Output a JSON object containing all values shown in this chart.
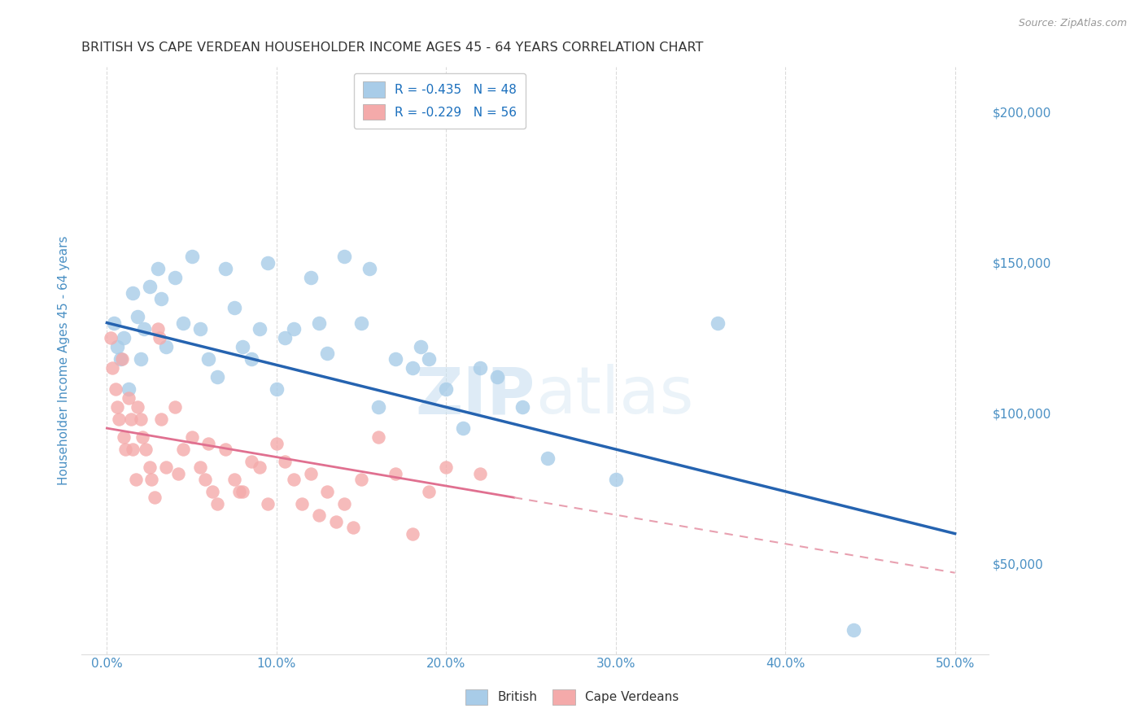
{
  "title": "BRITISH VS CAPE VERDEAN HOUSEHOLDER INCOME AGES 45 - 64 YEARS CORRELATION CHART",
  "source": "Source: ZipAtlas.com",
  "ylabel": "Householder Income Ages 45 - 64 years",
  "xlabel_ticks": [
    "0.0%",
    "10.0%",
    "20.0%",
    "30.0%",
    "40.0%",
    "50.0%"
  ],
  "xlabel_vals": [
    0.0,
    10.0,
    20.0,
    30.0,
    40.0,
    50.0
  ],
  "ylabel_ticks": [
    "$50,000",
    "$100,000",
    "$150,000",
    "$200,000"
  ],
  "ylabel_vals": [
    50000,
    100000,
    150000,
    200000
  ],
  "ylim": [
    20000,
    215000
  ],
  "xlim": [
    -1.5,
    52.0
  ],
  "british_color": "#a8cce8",
  "cape_verdean_color": "#f4aaaa",
  "british_line_color": "#2563b0",
  "cape_verdean_line_solid_color": "#e07090",
  "cape_verdean_line_dash_color": "#e8a0b0",
  "legend_r_british": "R = -0.435",
  "legend_n_british": "N = 48",
  "legend_r_cape": "R = -0.229",
  "legend_n_cape": "N = 56",
  "legend_label_british": "British",
  "legend_label_cape": "Cape Verdeans",
  "watermark_zip": "ZIP",
  "watermark_atlas": "atlas",
  "title_color": "#333333",
  "axis_label_color": "#4a90c4",
  "tick_color": "#4a90c4",
  "brit_line_x0": 0,
  "brit_line_y0": 130000,
  "brit_line_x1": 50,
  "brit_line_y1": 60000,
  "cape_solid_x0": 0,
  "cape_solid_y0": 95000,
  "cape_solid_x1": 24,
  "cape_solid_y1": 72000,
  "cape_dash_x0": 24,
  "cape_dash_y0": 72000,
  "cape_dash_x1": 50,
  "cape_dash_y1": 47000,
  "british_scatter": [
    [
      0.4,
      130000
    ],
    [
      0.6,
      122000
    ],
    [
      0.8,
      118000
    ],
    [
      1.0,
      125000
    ],
    [
      1.3,
      108000
    ],
    [
      1.5,
      140000
    ],
    [
      1.8,
      132000
    ],
    [
      2.0,
      118000
    ],
    [
      2.2,
      128000
    ],
    [
      2.5,
      142000
    ],
    [
      3.0,
      148000
    ],
    [
      3.2,
      138000
    ],
    [
      3.5,
      122000
    ],
    [
      4.0,
      145000
    ],
    [
      4.5,
      130000
    ],
    [
      5.0,
      152000
    ],
    [
      5.5,
      128000
    ],
    [
      6.0,
      118000
    ],
    [
      6.5,
      112000
    ],
    [
      7.0,
      148000
    ],
    [
      7.5,
      135000
    ],
    [
      8.0,
      122000
    ],
    [
      8.5,
      118000
    ],
    [
      9.0,
      128000
    ],
    [
      9.5,
      150000
    ],
    [
      10.0,
      108000
    ],
    [
      10.5,
      125000
    ],
    [
      11.0,
      128000
    ],
    [
      12.0,
      145000
    ],
    [
      12.5,
      130000
    ],
    [
      13.0,
      120000
    ],
    [
      14.0,
      152000
    ],
    [
      15.0,
      130000
    ],
    [
      15.5,
      148000
    ],
    [
      16.0,
      102000
    ],
    [
      17.0,
      118000
    ],
    [
      18.0,
      115000
    ],
    [
      18.5,
      122000
    ],
    [
      19.0,
      118000
    ],
    [
      20.0,
      108000
    ],
    [
      21.0,
      95000
    ],
    [
      22.0,
      115000
    ],
    [
      23.0,
      112000
    ],
    [
      24.5,
      102000
    ],
    [
      26.0,
      85000
    ],
    [
      30.0,
      78000
    ],
    [
      36.0,
      130000
    ],
    [
      44.0,
      28000
    ]
  ],
  "cape_verdean_scatter": [
    [
      0.2,
      125000
    ],
    [
      0.3,
      115000
    ],
    [
      0.5,
      108000
    ],
    [
      0.6,
      102000
    ],
    [
      0.7,
      98000
    ],
    [
      0.9,
      118000
    ],
    [
      1.0,
      92000
    ],
    [
      1.1,
      88000
    ],
    [
      1.3,
      105000
    ],
    [
      1.4,
      98000
    ],
    [
      1.5,
      88000
    ],
    [
      1.7,
      78000
    ],
    [
      1.8,
      102000
    ],
    [
      2.0,
      98000
    ],
    [
      2.1,
      92000
    ],
    [
      2.3,
      88000
    ],
    [
      2.5,
      82000
    ],
    [
      2.6,
      78000
    ],
    [
      2.8,
      72000
    ],
    [
      3.0,
      128000
    ],
    [
      3.1,
      125000
    ],
    [
      3.2,
      98000
    ],
    [
      3.5,
      82000
    ],
    [
      4.0,
      102000
    ],
    [
      4.2,
      80000
    ],
    [
      4.5,
      88000
    ],
    [
      5.0,
      92000
    ],
    [
      5.5,
      82000
    ],
    [
      5.8,
      78000
    ],
    [
      6.0,
      90000
    ],
    [
      6.2,
      74000
    ],
    [
      6.5,
      70000
    ],
    [
      7.0,
      88000
    ],
    [
      7.5,
      78000
    ],
    [
      7.8,
      74000
    ],
    [
      8.0,
      74000
    ],
    [
      8.5,
      84000
    ],
    [
      9.0,
      82000
    ],
    [
      9.5,
      70000
    ],
    [
      10.0,
      90000
    ],
    [
      10.5,
      84000
    ],
    [
      11.0,
      78000
    ],
    [
      11.5,
      70000
    ],
    [
      12.0,
      80000
    ],
    [
      12.5,
      66000
    ],
    [
      13.0,
      74000
    ],
    [
      13.5,
      64000
    ],
    [
      14.0,
      70000
    ],
    [
      14.5,
      62000
    ],
    [
      15.0,
      78000
    ],
    [
      16.0,
      92000
    ],
    [
      17.0,
      80000
    ],
    [
      18.0,
      60000
    ],
    [
      19.0,
      74000
    ],
    [
      20.0,
      82000
    ],
    [
      22.0,
      80000
    ]
  ]
}
